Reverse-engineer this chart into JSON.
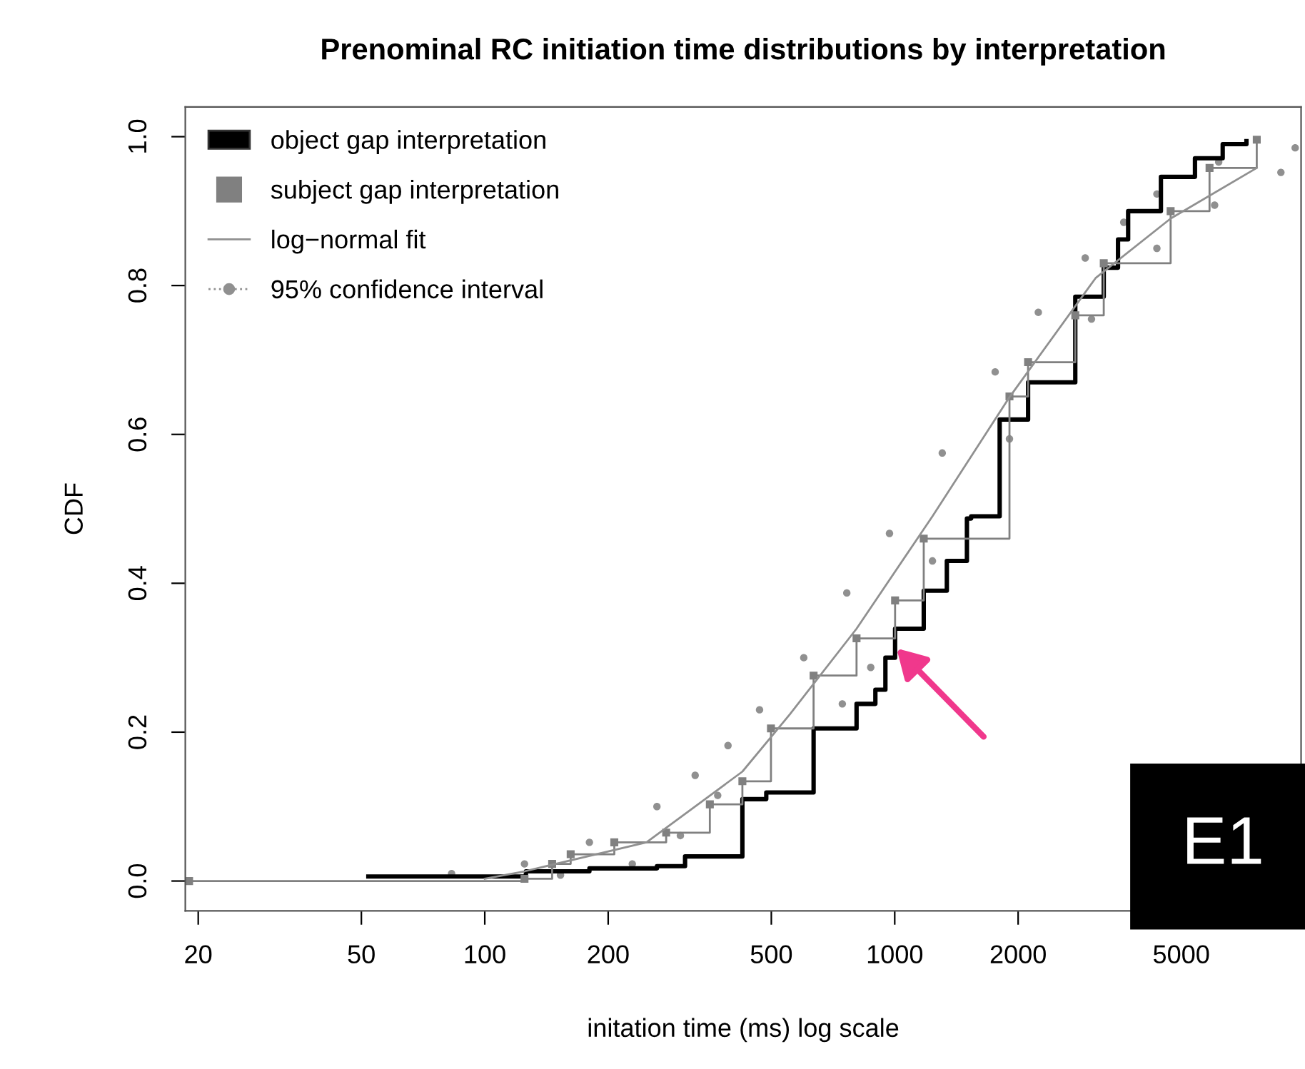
{
  "chart_data": {
    "type": "step",
    "title": "Prenominal RC initiation time distributions by interpretation",
    "xlabel": "initation time (ms) log scale",
    "ylabel": "CDF",
    "log": "x",
    "xlim": [
      18.6,
      9800
    ],
    "ylim": [
      -0.04,
      1.04
    ],
    "xticks": [
      20,
      50,
      100,
      200,
      500,
      1000,
      2000,
      5000
    ],
    "yticks": [
      {
        "value": 0,
        "label": "0.0"
      },
      {
        "value": 0.2,
        "label": "0.2"
      },
      {
        "value": 0.4,
        "label": "0.4"
      },
      {
        "value": 0.6,
        "label": "0.6"
      },
      {
        "value": 0.8,
        "label": "0.8"
      },
      {
        "value": 1,
        "label": "1.0"
      }
    ],
    "grid": false,
    "legend": "top left",
    "annotations": [
      "E1"
    ],
    "series": [
      {
        "name": "object gap interpretation",
        "color": "#000000",
        "marker": "none",
        "x": [
          52,
          126,
          180,
          263,
          308,
          425,
          486,
          634,
          807,
          897,
          949,
          1002,
          1177,
          1340,
          1500,
          1536,
          1803,
          2115,
          2757,
          3235,
          3505,
          3710,
          4460,
          5400,
          6310,
          7210
        ],
        "values": [
          0.006,
          0.013,
          0.017,
          0.02,
          0.033,
          0.11,
          0.119,
          0.205,
          0.238,
          0.257,
          0.3,
          0.339,
          0.39,
          0.43,
          0.487,
          0.49,
          0.62,
          0.67,
          0.785,
          0.824,
          0.862,
          0.9,
          0.946,
          0.971,
          0.99,
          0.994
        ]
      },
      {
        "name": "subject gap interpretation",
        "color": "#808080",
        "marker": "square",
        "x": [
          19,
          125,
          146,
          162,
          207,
          277,
          354,
          425,
          499,
          634,
          807,
          1002,
          1177,
          1905,
          2115,
          2757,
          3235,
          4710,
          5860,
          7640
        ],
        "values": [
          0.0,
          0.003,
          0.023,
          0.036,
          0.052,
          0.065,
          0.103,
          0.134,
          0.205,
          0.276,
          0.326,
          0.377,
          0.46,
          0.651,
          0.697,
          0.76,
          0.83,
          0.9,
          0.958,
          0.996
        ]
      },
      {
        "name": "log−normal fit",
        "type": "line",
        "color": "#909090",
        "marker": "none",
        "line_style": "solid",
        "x": [
          100,
          125,
          248,
          425,
          555,
          807,
          1236,
          1905,
          3090,
          4710,
          7640
        ],
        "values": [
          0.003,
          0.013,
          0.052,
          0.147,
          0.224,
          0.339,
          0.49,
          0.65,
          0.81,
          0.89,
          0.958
        ]
      },
      {
        "name": "95% confidence interval",
        "type": "scatter",
        "color": "#909090",
        "marker": "circle",
        "x": [
          83,
          125,
          180,
          263,
          326,
          392,
          468,
          600,
          764,
          971,
          1306,
          1758,
          2240,
          2915,
          3620,
          4360,
          6170,
          9480
        ],
        "values": [
          0.01,
          0.023,
          0.052,
          0.1,
          0.142,
          0.182,
          0.23,
          0.3,
          0.387,
          0.467,
          0.575,
          0.684,
          0.764,
          0.837,
          0.885,
          0.923,
          0.966,
          0.985
        ]
      },
      {
        "type": "scatter",
        "color": "#909090",
        "marker": "circle",
        "x": [
          153,
          229,
          300,
          370,
          745,
          874,
          1236,
          1905,
          3020,
          4360,
          6030,
          8750
        ],
        "values": [
          0.008,
          0.023,
          0.061,
          0.115,
          0.238,
          0.287,
          0.43,
          0.594,
          0.755,
          0.85,
          0.908,
          0.952
        ]
      }
    ]
  }
}
